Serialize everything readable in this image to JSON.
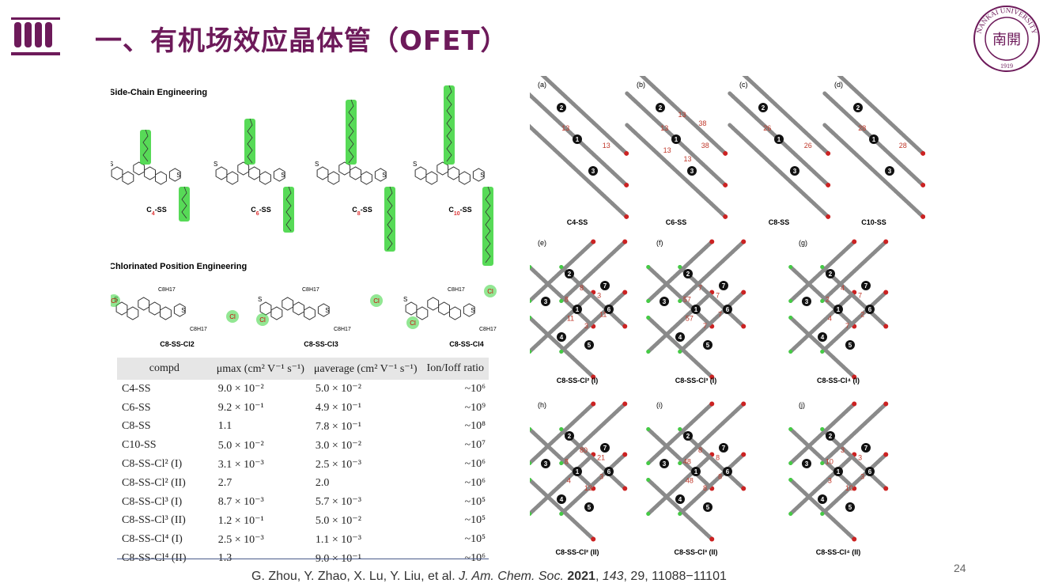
{
  "header": {
    "title": "一、有机场效应晶体管（OFET）",
    "logo_text": "NANKAI UNIVERSITY",
    "logo_year": "1919",
    "logo_char": "南開",
    "accent": "#6d1a5a"
  },
  "left_panel": {
    "section1": "Side-Chain Engineering",
    "section2": "Chlorinated Position Engineering",
    "side_chain_labels": [
      "C4-SS",
      "C6-SS",
      "C8-SS",
      "C10-SS"
    ],
    "chlorinated_labels": [
      "C8-SS-Cl2",
      "C8-SS-Cl3",
      "C8-SS-Cl4"
    ],
    "substituent": "C8H17",
    "atoms": {
      "s": "S",
      "cl": "Cl"
    },
    "highlight_color": "#39d33a"
  },
  "table": {
    "headers": [
      "compd",
      "μmax (cm² V⁻¹ s⁻¹)",
      "μaverage (cm² V⁻¹ s⁻¹)",
      "Ion/Ioff ratio"
    ],
    "rows": [
      [
        "C4-SS",
        "9.0 × 10⁻²",
        "5.0 × 10⁻²",
        "~10⁶"
      ],
      [
        "C6-SS",
        "9.2 × 10⁻¹",
        "4.9 × 10⁻¹",
        "~10⁹"
      ],
      [
        "C8-SS",
        "1.1",
        "7.8 × 10⁻¹",
        "~10⁸"
      ],
      [
        "C10-SS",
        "5.0 × 10⁻²",
        "3.0 × 10⁻²",
        "~10⁷"
      ],
      [
        "C8-SS-Cl² (I)",
        "3.1 × 10⁻³",
        "2.5 × 10⁻³",
        "~10⁶"
      ],
      [
        "C8-SS-Cl² (II)",
        "2.7",
        "2.0",
        "~10⁶"
      ],
      [
        "C8-SS-Cl³ (I)",
        "8.7 × 10⁻³",
        "5.7 × 10⁻³",
        "~10⁵"
      ],
      [
        "C8-SS-Cl³ (II)",
        "1.2 × 10⁻¹",
        "5.0 × 10⁻²",
        "~10⁵"
      ],
      [
        "C8-SS-Cl⁴ (I)",
        "2.5 × 10⁻³",
        "1.1 × 10⁻³",
        "~10⁵"
      ],
      [
        "C8-SS-Cl⁴ (II)",
        "1.3",
        "9.0 × 10⁻¹",
        "~10⁶"
      ]
    ]
  },
  "citation": {
    "authors": "G. Zhou, Y. Zhao, X. Lu, Y. Liu, et al. ",
    "journal": "J. Am. Chem. Soc.",
    "year": "2021",
    "volume": "143",
    "rest": ", 29, 11088−11101"
  },
  "page_number": "24",
  "packing": {
    "panels": [
      {
        "letter": "(a)",
        "label": "C4-SS",
        "numbers": [
          "13",
          "13"
        ]
      },
      {
        "letter": "(b)",
        "label": "C6-SS",
        "numbers": [
          "38",
          "13",
          "13",
          "13",
          "13",
          "38"
        ]
      },
      {
        "letter": "(c)",
        "label": "C8-SS",
        "numbers": [
          "26",
          "26"
        ]
      },
      {
        "letter": "(d)",
        "label": "C10-SS",
        "numbers": [
          "28",
          "28"
        ]
      },
      {
        "letter": "(e)",
        "label": "C8-SS-Cl² (I)",
        "numbers": [
          "11",
          "3",
          "11",
          "8",
          "8",
          "3"
        ]
      },
      {
        "letter": "(f)",
        "label": "C8-SS-Cl³ (I)",
        "numbers": [
          "7",
          "7",
          "57",
          "57",
          "7",
          "7"
        ]
      },
      {
        "letter": "(g)",
        "label": "C8-SS-Cl⁴ (I)",
        "numbers": [
          "2",
          "7",
          "4",
          "2",
          "4",
          "7"
        ]
      },
      {
        "letter": "(h)",
        "label": "C8-SS-Cl² (II)",
        "numbers": [
          "3",
          "13",
          "4",
          "8",
          "80",
          "21"
        ]
      },
      {
        "letter": "(i)",
        "label": "C8-SS-Cl³ (II)",
        "numbers": [
          "8",
          "8",
          "48",
          "48",
          "8",
          "8"
        ]
      },
      {
        "letter": "(j)",
        "label": "C8-SS-Cl⁴ (II)",
        "numbers": [
          "3",
          "10",
          "3",
          "10",
          "3",
          "3"
        ]
      }
    ]
  }
}
